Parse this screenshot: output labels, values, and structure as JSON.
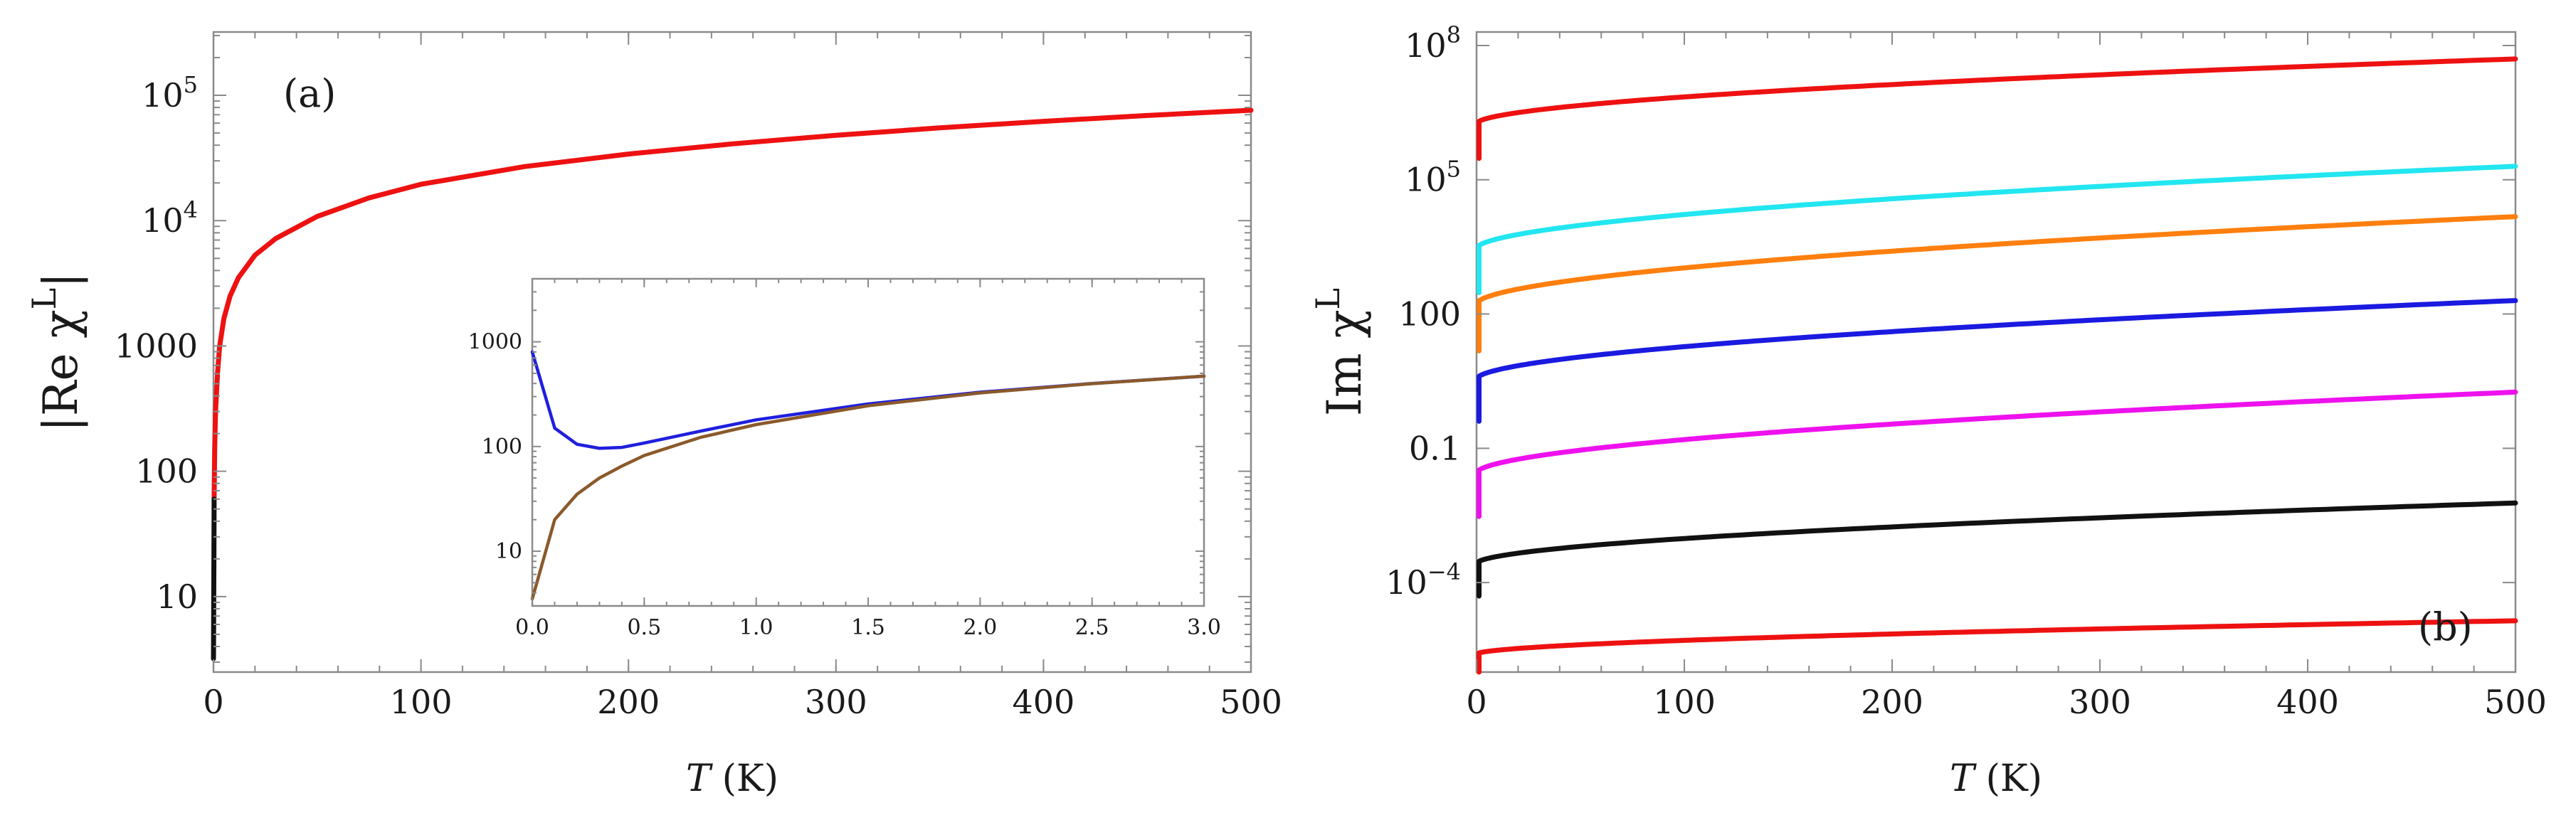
{
  "chart_data": [
    {
      "type": "line",
      "panel_label": "(a)",
      "title": "",
      "xlabel": "T",
      "xlabel_unit": "(K)",
      "ylabel": "|Re χ",
      "ylabel_sup": "L",
      "ylabel_close": "|",
      "yscale": "log",
      "xlim": [
        0,
        500
      ],
      "ylim": [
        2.5,
        320000
      ],
      "x_ticks": [
        0,
        100,
        200,
        300,
        400,
        500
      ],
      "x_tick_labels": [
        "0",
        "100",
        "200",
        "300",
        "400",
        "500"
      ],
      "y_ticks": [
        10,
        100,
        1000,
        10000,
        100000
      ],
      "y_tick_labels": [
        {
          "base": "10",
          "sup": ""
        },
        {
          "base": "100",
          "sup": ""
        },
        {
          "base": "1000",
          "sup": ""
        },
        {
          "base": "10",
          "sup": "4"
        },
        {
          "base": "10",
          "sup": "5"
        }
      ],
      "series": [
        {
          "name": "|Re χL|",
          "color": "#ee1111",
          "x": [
            0.3,
            0.6,
            1,
            2,
            3,
            5,
            8,
            12,
            20,
            30,
            50,
            75,
            100,
            150,
            200,
            250,
            300,
            350,
            400,
            450,
            500
          ],
          "y": [
            60,
            150,
            300,
            620,
            1000,
            1650,
            2500,
            3500,
            5300,
            7200,
            10800,
            15200,
            19500,
            27000,
            34000,
            41000,
            48000,
            55000,
            62000,
            69000,
            76000
          ]
        },
        {
          "name": "low-T segment",
          "color": "#111111",
          "x": [
            0.0,
            0.1,
            0.2,
            0.3
          ],
          "y": [
            3.2,
            8,
            20,
            60
          ]
        }
      ],
      "inset": {
        "type": "line",
        "yscale": "log",
        "xlim": [
          0,
          3
        ],
        "ylim": [
          3,
          4000
        ],
        "x_ticks": [
          0,
          0.5,
          1.0,
          1.5,
          2.0,
          2.5,
          3.0
        ],
        "x_tick_labels": [
          "0.0",
          "0.5",
          "1.0",
          "1.5",
          "2.0",
          "2.5",
          "3.0"
        ],
        "y_ticks": [
          10,
          100,
          1000
        ],
        "y_tick_labels": [
          "10",
          "100",
          "1000"
        ],
        "series": [
          {
            "name": "blue",
            "color": "#1f1fdd",
            "x": [
              0.0,
              0.1,
              0.2,
              0.3,
              0.4,
              0.5,
              0.75,
              1.0,
              1.5,
              2.0,
              2.5,
              3.0
            ],
            "y": [
              800,
              150,
              105,
              96,
              98,
              108,
              140,
              180,
              255,
              330,
              400,
              470
            ]
          },
          {
            "name": "brown",
            "color": "#8b5a2b",
            "x": [
              0.0,
              0.1,
              0.2,
              0.3,
              0.4,
              0.5,
              0.75,
              1.0,
              1.5,
              2.0,
              2.5,
              3.0
            ],
            "y": [
              3.5,
              20,
              35,
              50,
              65,
              82,
              122,
              162,
              245,
              325,
              398,
              470
            ]
          }
        ]
      }
    },
    {
      "type": "line",
      "panel_label": "(b)",
      "title": "",
      "xlabel": "T",
      "xlabel_unit": "(K)",
      "ylabel": "Im χ",
      "ylabel_sup": "L",
      "yscale": "log",
      "xlim": [
        0,
        500
      ],
      "ylim": [
        1e-06,
        200000000
      ],
      "x_ticks": [
        0,
        100,
        200,
        300,
        400,
        500
      ],
      "x_tick_labels": [
        "0",
        "100",
        "200",
        "300",
        "400",
        "500"
      ],
      "y_ticks": [
        0.0001,
        0.1,
        100,
        100000,
        100000000
      ],
      "y_tick_labels": [
        {
          "base": "10",
          "sup": "−4"
        },
        {
          "base": "0.1",
          "sup": ""
        },
        {
          "base": "100",
          "sup": ""
        },
        {
          "base": "10",
          "sup": "5"
        },
        {
          "base": "10",
          "sup": "8"
        }
      ],
      "series": [
        {
          "name": "curve 1",
          "color": "#ee1111",
          "y_start": 300000,
          "y_end": 50000000
        },
        {
          "name": "curve 2",
          "color": "#22e6f0",
          "y_start": 300,
          "y_end": 200000
        },
        {
          "name": "curve 3",
          "color": "#ff7f0e",
          "y_start": 15,
          "y_end": 15000
        },
        {
          "name": "curve 4",
          "color": "#1a1ae0",
          "y_start": 0.4,
          "y_end": 200
        },
        {
          "name": "curve 5",
          "color": "#ee11ee",
          "y_start": 0.003,
          "y_end": 1.8
        },
        {
          "name": "curve 6",
          "color": "#111111",
          "y_start": 5e-05,
          "y_end": 0.006
        },
        {
          "name": "curve 7",
          "color": "#ee1111",
          "y_start": 1e-06,
          "y_end": 1.4e-05
        }
      ]
    }
  ]
}
